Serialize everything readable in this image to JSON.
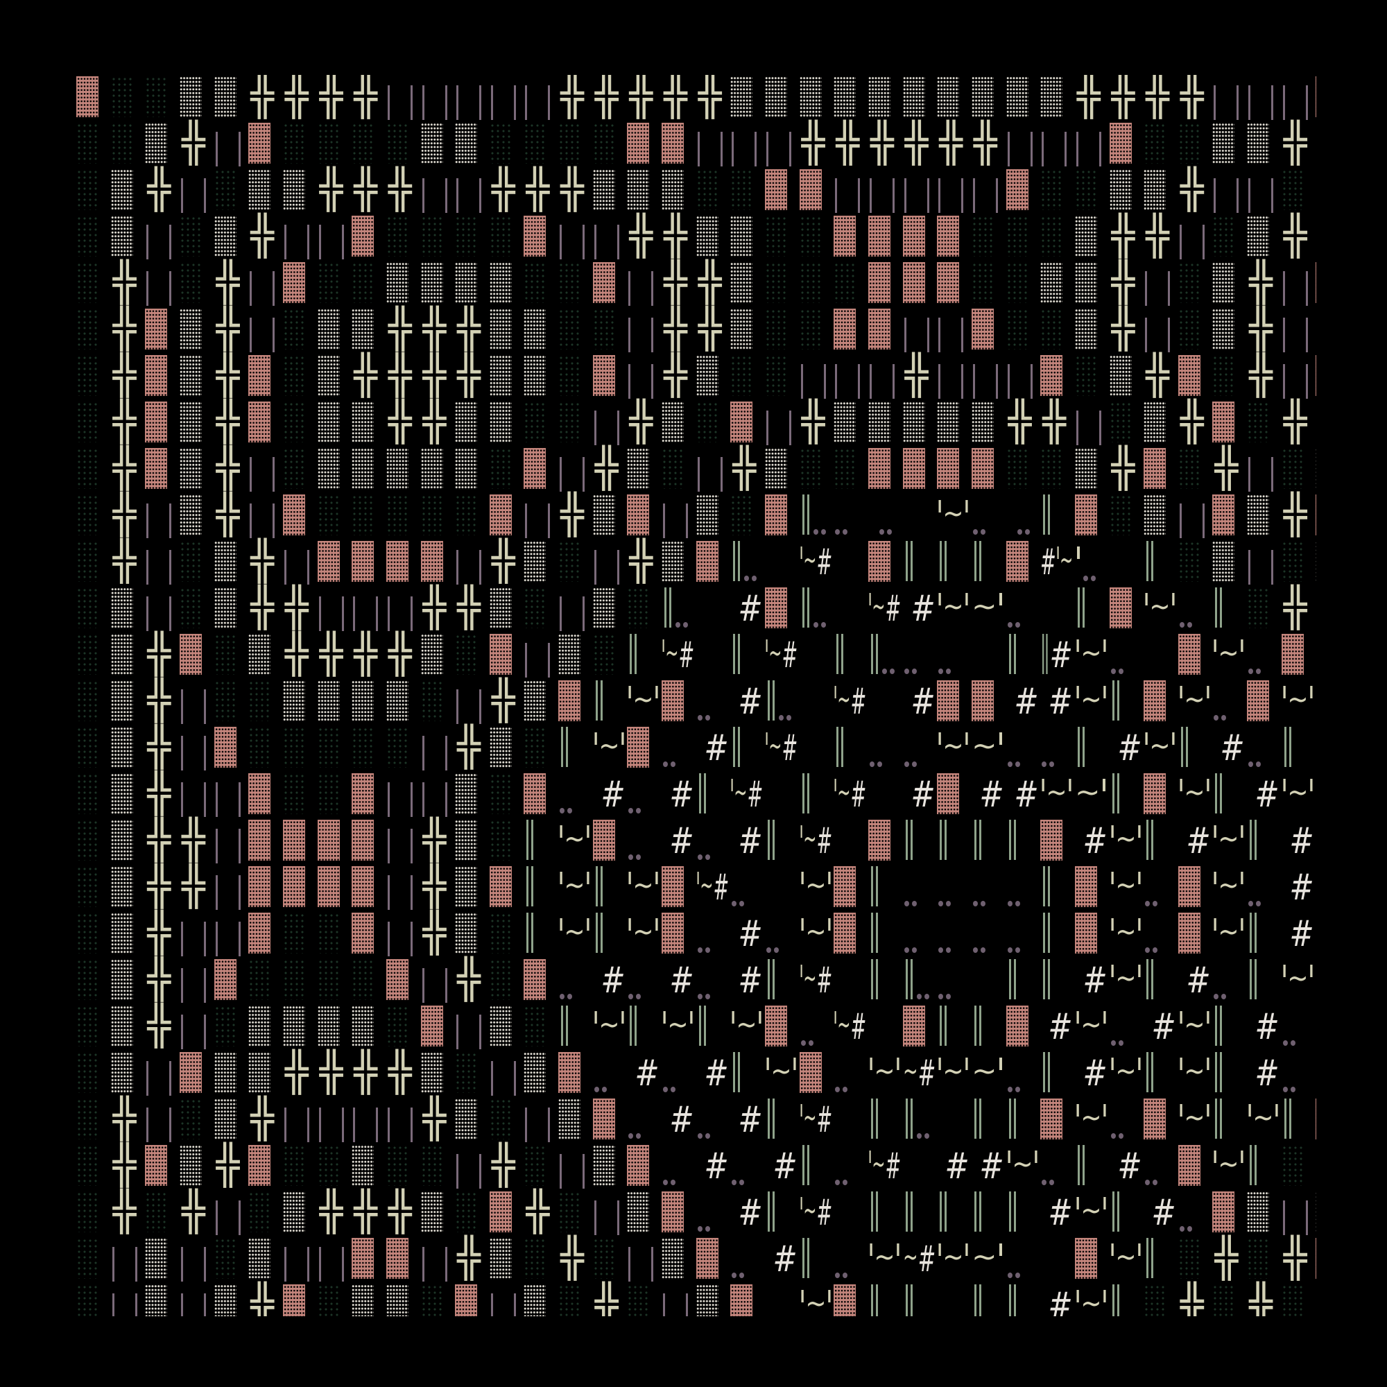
{
  "palette": {
    "background": "#000000",
    "pink_block": "#c4857c",
    "white_dots": "#e4e0d6",
    "green_dots": "#1d3527",
    "cream": "#d3d1b5",
    "mauve": "#7b6a7a",
    "green_double_bar": "#8fa38b",
    "dot": "#6f6070",
    "hash": "#e8e4de"
  },
  "legend": {
    "P": "pink-block",
    "W": "white-dot-block",
    "d": "green-dot-block",
    "+": "double-cross-glyph",
    "|": "mauve-bars"
  },
  "grid": [
    [
      "P",
      "d",
      "d",
      "W",
      "W",
      "+",
      "+",
      "+",
      "+",
      "|",
      "|",
      "|",
      "|",
      "|",
      "+",
      "+",
      "+",
      "+",
      "+",
      "W",
      "W",
      "W",
      "W",
      "W",
      "W",
      "W",
      "W",
      "W",
      "W",
      "+",
      "+",
      "+",
      "+",
      "|",
      "|",
      "|",
      "P"
    ],
    [
      "d",
      "d",
      "W",
      "+",
      "|",
      "P",
      "d",
      "d",
      "d",
      "d",
      "W",
      "W",
      "d",
      "d",
      "d",
      "d",
      "P",
      "P",
      "|",
      "|",
      "|",
      "+",
      "+",
      "+",
      "+",
      "+",
      "+",
      "|",
      "|",
      "|",
      "P",
      "d",
      "d",
      "W",
      "W",
      "+",
      "+"
    ],
    [
      "d",
      "W",
      "+",
      "|",
      "d",
      "W",
      "W",
      "+",
      "+",
      "+",
      "|",
      "|",
      "+",
      "+",
      "+",
      "W",
      "W",
      "W",
      "d",
      "d",
      "P",
      "P",
      "|",
      "|",
      "|",
      "|",
      "|",
      "P",
      "d",
      "d",
      "W",
      "W",
      "+",
      "|",
      "|",
      "d",
      "d"
    ],
    [
      "d",
      "W",
      "|",
      "d",
      "W",
      "+",
      "|",
      "|",
      "P",
      "d",
      "d",
      "d",
      "d",
      "P",
      "|",
      "|",
      "+",
      "+",
      "W",
      "W",
      "d",
      "d",
      "P",
      "P",
      "P",
      "P",
      "d",
      "d",
      "d",
      "W",
      "+",
      "+",
      "|",
      "d",
      "W",
      "+",
      "+"
    ],
    [
      "d",
      "+",
      "|",
      "d",
      "+",
      "|",
      "P",
      "d",
      "d",
      "W",
      "W",
      "W",
      "W",
      "d",
      "d",
      "P",
      "|",
      "+",
      "+",
      "W",
      "d",
      "d",
      "d",
      "P",
      "P",
      "P",
      "d",
      "d",
      "W",
      "W",
      "+",
      "|",
      "d",
      "W",
      "+",
      "|",
      "P"
    ],
    [
      "d",
      "+",
      "P",
      "W",
      "+",
      "|",
      "d",
      "W",
      "W",
      "+",
      "+",
      "+",
      "W",
      "W",
      "d",
      "d",
      "|",
      "+",
      "+",
      "W",
      "d",
      "d",
      "P",
      "P",
      "|",
      "|",
      "P",
      "d",
      "d",
      "W",
      "+",
      "|",
      "d",
      "W",
      "+",
      "|",
      "d"
    ],
    [
      "d",
      "+",
      "P",
      "W",
      "+",
      "P",
      "d",
      "W",
      "+",
      "+",
      "+",
      "+",
      "W",
      "W",
      "d",
      "P",
      "|",
      "+",
      "W",
      "d",
      "d",
      "|",
      "|",
      "|",
      "+",
      "|",
      "|",
      "|",
      "P",
      "d",
      "W",
      "+",
      "P",
      "d",
      "+",
      "|",
      "P"
    ],
    [
      "d",
      "+",
      "P",
      "W",
      "+",
      "P",
      "d",
      "W",
      "W",
      "+",
      "+",
      "W",
      "W",
      "d",
      "d",
      "|",
      "+",
      "W",
      "d",
      "P",
      "|",
      "+",
      "W",
      "W",
      "W",
      "W",
      "W",
      "+",
      "+",
      "|",
      "d",
      "W",
      "+",
      "P",
      "d",
      "+",
      "|"
    ],
    [
      "d",
      "+",
      "P",
      "W",
      "+",
      "|",
      "d",
      "W",
      "W",
      "W",
      "W",
      "W",
      "d",
      "P",
      "|",
      "+",
      "W",
      "d",
      "|",
      "+",
      "W",
      "d",
      "d",
      "P",
      "P",
      "P",
      "P",
      "d",
      "d",
      "W",
      "+",
      "P",
      "d",
      "+",
      "|",
      "d",
      "W"
    ],
    [
      "d",
      "+",
      "|",
      "W",
      "+",
      "|",
      "P",
      "d",
      "d",
      "d",
      "d",
      "d",
      "P",
      "|",
      "+",
      "W",
      "P",
      "|",
      "W",
      "d",
      "P",
      "║..",
      "..",
      " ..",
      "",
      "'~'",
      "..",
      " ..",
      "║",
      "P",
      "d",
      "W",
      "|",
      "P",
      "W",
      "+",
      "P"
    ],
    [
      "d",
      "+",
      "|",
      "d",
      "W",
      "+",
      "|",
      "P",
      "P",
      "P",
      "P",
      "|",
      "+",
      "W",
      "d",
      "|",
      "+",
      "W",
      "P",
      "║..",
      "",
      "'~#",
      "",
      "P",
      "║",
      "║",
      "║",
      "P",
      "#'~",
      "'..",
      "",
      "║",
      "d",
      "W",
      "|",
      "d",
      "W"
    ],
    [
      "d",
      "W",
      "|",
      "d",
      "W",
      "+",
      "+",
      "|",
      "|",
      "|",
      "+",
      "+",
      "W",
      "d",
      "|",
      "W",
      "d",
      "║..",
      "",
      " #",
      "P",
      "║..",
      "",
      "'~#",
      " #",
      "'~'",
      "~'",
      "..",
      "",
      "║",
      "P",
      "'~'",
      "..",
      "║",
      "d",
      "+",
      "|"
    ],
    [
      "d",
      "W",
      "+",
      "P",
      "d",
      "W",
      "+",
      "+",
      "+",
      "+",
      "W",
      "d",
      "P",
      "|",
      "W",
      "d",
      "║",
      "'~#",
      "",
      "║",
      "'~#",
      "",
      "║",
      "║..",
      "..",
      "..",
      "",
      "║",
      "║#",
      "'~'",
      "..",
      "",
      "P",
      "'~'",
      "..",
      "P",
      "d"
    ],
    [
      "d",
      "W",
      "+",
      "|",
      "d",
      "d",
      "W",
      "W",
      "W",
      "W",
      "d",
      "|",
      "+",
      "W",
      "P",
      "║",
      "'~'",
      "P",
      "..",
      " #",
      "║..",
      "",
      "'~#",
      "",
      " #",
      "P",
      "P",
      " #",
      " #",
      "'~'",
      "║",
      "P",
      "'~'",
      "..",
      "P",
      "'~'",
      ""
    ],
    [
      "d",
      "W",
      "+",
      "|",
      "P",
      "d",
      "d",
      "d",
      "d",
      "d",
      "|",
      "+",
      "W",
      "d",
      "║",
      "'~'",
      "P",
      "..",
      " #",
      "║",
      "'~#",
      "",
      "║",
      "..",
      "..",
      "'~'",
      "~'",
      "..",
      "..",
      "║",
      " #",
      "'~'",
      "║",
      " #",
      "..",
      "║",
      " #"
    ],
    [
      "d",
      "W",
      "+",
      "|",
      "|",
      "P",
      "d",
      "d",
      "P",
      "|",
      "|",
      "W",
      "d",
      "P",
      "..",
      " #",
      "..",
      " #",
      "║",
      "'~#",
      "",
      "║",
      "'~#",
      "",
      " #",
      "P",
      " #",
      " #",
      "'~'",
      "~'",
      "║",
      "P",
      "'~'",
      "║",
      " #",
      "'~'",
      ""
    ],
    [
      "d",
      "W",
      "+",
      "+",
      "|",
      "P",
      "P",
      "P",
      "P",
      "|",
      "+",
      "W",
      "d",
      "║",
      "'~'",
      "P",
      "..",
      " #",
      "..",
      " #",
      "║",
      "'~#",
      "",
      "P",
      "║",
      "║",
      "║",
      "║",
      "P",
      " #",
      "'~'",
      "║",
      " #",
      "'~'",
      "║",
      " #",
      ".."
    ],
    [
      "d",
      "W",
      "+",
      "+",
      "|",
      "P",
      "P",
      "P",
      "P",
      "|",
      "+",
      "W",
      "P",
      "║",
      "'~'",
      "║",
      "'~'",
      "P",
      "'~#",
      "..",
      "",
      "'~'",
      "P",
      "║",
      "..",
      "..",
      "..",
      "..",
      "║",
      "P",
      "'~'",
      "..",
      "P",
      "'~'",
      "..",
      " #",
      "'~"
    ],
    [
      "d",
      "W",
      "+",
      "|",
      "|",
      "P",
      "d",
      "d",
      "P",
      "|",
      "+",
      "W",
      "d",
      "║",
      "'~'",
      "║",
      "'~'",
      "P",
      "..",
      " #",
      "..",
      "'~'",
      "P",
      "║",
      "..",
      "..",
      "..",
      "..",
      "║",
      "P",
      "'~'",
      "..",
      "P",
      "'~'",
      "║",
      " #",
      ".."
    ],
    [
      "d",
      "W",
      "+",
      "|",
      "P",
      "d",
      "d",
      "d",
      "d",
      "P",
      "|",
      "+",
      "d",
      "P",
      "..",
      " #",
      "..",
      " #",
      "..",
      " #",
      "║",
      "'~#",
      "",
      "║",
      "║..",
      "..",
      "",
      "║",
      "║",
      " #",
      "'~'",
      "║",
      " #",
      "..",
      "║",
      "'~'",
      ""
    ],
    [
      "d",
      "W",
      "+",
      "|",
      "d",
      "W",
      "W",
      "W",
      "W",
      "d",
      "P",
      "|",
      "W",
      "d",
      "║",
      "'~'",
      "║",
      "'~'",
      "║",
      "'~'",
      "P",
      "..",
      "'~#",
      "",
      "P",
      "║",
      "║",
      "P",
      " #",
      "'~'",
      "..",
      " #",
      "'~'",
      "║",
      " #",
      "..",
      " #"
    ],
    [
      "d",
      "W",
      "|",
      "P",
      "W",
      "W",
      "+",
      "+",
      "+",
      "+",
      "W",
      "d",
      "|",
      "W",
      "P",
      "..",
      " #",
      "..",
      " #",
      "║",
      "'~'",
      "P",
      "..",
      "'~'",
      "~#",
      "'~'",
      "~'",
      "..",
      "║",
      " #",
      "'~'",
      "║",
      "'~'",
      "║",
      " #",
      "..",
      ""
    ],
    [
      "d",
      "+",
      "|",
      "d",
      "W",
      "+",
      "|",
      "|",
      "|",
      "|",
      "+",
      "W",
      "d",
      "|",
      "W",
      "P",
      "..",
      " #",
      "..",
      " #",
      "║",
      "'~#",
      "",
      "║",
      "║..",
      "",
      "║",
      "║",
      "P",
      "'~'",
      "..",
      "P",
      "'~'",
      "║",
      "'~'",
      "║",
      "P"
    ],
    [
      "d",
      "+",
      "P",
      "W",
      "+",
      "P",
      "d",
      "d",
      "W",
      "d",
      "d",
      "|",
      "+",
      "d",
      "|",
      "W",
      "P",
      "..",
      " #",
      "..",
      " #",
      "║",
      "..",
      "'~#",
      "",
      " #",
      " #",
      "'~'",
      "..",
      "║",
      " #",
      "..",
      "P",
      "'~'",
      "║",
      "d",
      "+"
    ],
    [
      "d",
      "+",
      "d",
      "+",
      "|",
      "d",
      "W",
      "+",
      "+",
      "+",
      "W",
      "d",
      "P",
      "+",
      "d",
      "|",
      "W",
      "P",
      "..",
      " #",
      "║",
      "'~#",
      "",
      "║",
      "║",
      "║",
      "║",
      "║",
      " #",
      "'~'",
      "║",
      " #",
      "..",
      "P",
      "W",
      "|",
      "W"
    ],
    [
      "d",
      "|",
      "W",
      "|",
      "d",
      "W",
      "|",
      "|",
      "P",
      "P",
      "|",
      "+",
      "W",
      "d",
      "+",
      "d",
      "|",
      "W",
      "P",
      "..",
      " #",
      "║",
      "..",
      "'~'",
      "~#",
      "'~'",
      "~'",
      "..",
      "",
      "P",
      "'~'",
      "║",
      "d",
      "+",
      "d",
      "+",
      "P"
    ],
    [
      "d",
      "|",
      "W",
      "|",
      "W",
      "+",
      "P",
      "d",
      "W",
      "W",
      "d",
      "P",
      "|",
      "W",
      "d",
      "+",
      "d",
      "|",
      "W",
      "P",
      "",
      "'~'",
      "P",
      "║",
      "║",
      "",
      "║",
      "║",
      " #",
      "'~'",
      "║",
      "d",
      "+",
      "d",
      "+",
      "d",
      "+"
    ]
  ]
}
